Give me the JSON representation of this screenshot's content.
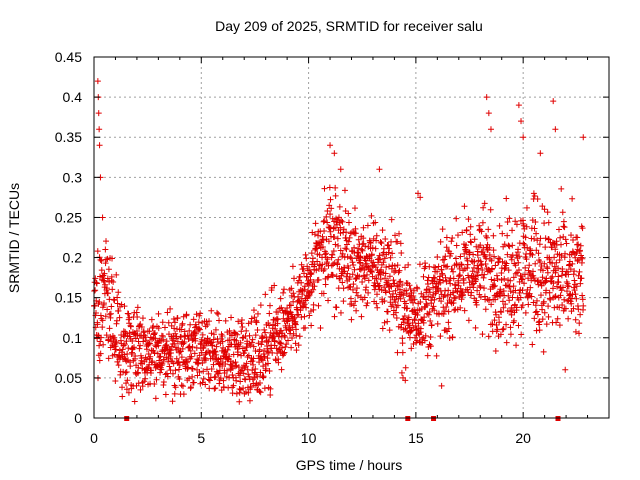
{
  "chart_data": {
    "type": "scatter",
    "title": "Day 209 of 2025, SRMTID for receiver salu",
    "xlabel": "GPS time / hours",
    "ylabel": "SRMTID / TECUs",
    "xlim": [
      0,
      24
    ],
    "ylim": [
      0,
      0.45
    ],
    "x_ticks": [
      0,
      5,
      10,
      15,
      20
    ],
    "x_tick_labels": [
      "0",
      "5",
      "10",
      "15",
      "20"
    ],
    "y_ticks": [
      0,
      0.05,
      0.1,
      0.15,
      0.2,
      0.25,
      0.3,
      0.35,
      0.4,
      0.45
    ],
    "y_tick_labels": [
      "0",
      "0.05",
      "0.1",
      "0.15",
      "0.2",
      "0.25",
      "0.3",
      "0.35",
      "0.4",
      "0.45"
    ],
    "grid": true,
    "marker": "+",
    "color": "#e00000",
    "series": [
      {
        "name": "SRMTID",
        "trend": {
          "x": [
            0.0,
            0.3,
            0.8,
            1.3,
            2.0,
            3.0,
            4.0,
            5.0,
            6.0,
            7.0,
            7.5,
            8.0,
            9.0,
            9.5,
            10.0,
            10.5,
            11.0,
            11.5,
            12.0,
            13.0,
            14.0,
            14.5,
            15.0,
            16.0,
            17.0,
            18.0,
            19.0,
            20.0,
            21.0,
            22.0,
            22.8
          ],
          "center": [
            0.13,
            0.15,
            0.13,
            0.09,
            0.09,
            0.08,
            0.08,
            0.08,
            0.075,
            0.08,
            0.075,
            0.09,
            0.12,
            0.14,
            0.16,
            0.19,
            0.22,
            0.21,
            0.19,
            0.19,
            0.17,
            0.13,
            0.13,
            0.15,
            0.18,
            0.19,
            0.17,
            0.19,
            0.18,
            0.17,
            0.17
          ],
          "spread": [
            0.03,
            0.05,
            0.04,
            0.035,
            0.035,
            0.03,
            0.03,
            0.03,
            0.03,
            0.035,
            0.035,
            0.04,
            0.03,
            0.03,
            0.035,
            0.04,
            0.045,
            0.04,
            0.035,
            0.035,
            0.04,
            0.04,
            0.035,
            0.04,
            0.04,
            0.045,
            0.045,
            0.05,
            0.05,
            0.05,
            0.05
          ]
        },
        "outliers": [
          [
            0.18,
            0.42
          ],
          [
            0.2,
            0.4
          ],
          [
            0.22,
            0.38
          ],
          [
            0.24,
            0.36
          ],
          [
            0.26,
            0.34
          ],
          [
            0.3,
            0.3
          ],
          [
            0.4,
            0.25
          ],
          [
            11.0,
            0.34
          ],
          [
            11.2,
            0.33
          ],
          [
            11.5,
            0.31
          ],
          [
            13.3,
            0.31
          ],
          [
            18.3,
            0.4
          ],
          [
            18.4,
            0.38
          ],
          [
            18.5,
            0.36
          ],
          [
            19.8,
            0.39
          ],
          [
            19.9,
            0.37
          ],
          [
            20.0,
            0.35
          ],
          [
            21.4,
            0.395
          ],
          [
            21.5,
            0.36
          ],
          [
            22.8,
            0.35
          ],
          [
            15.1,
            0.28
          ],
          [
            15.2,
            0.275
          ],
          [
            14.4,
            0.05
          ],
          [
            16.2,
            0.04
          ],
          [
            20.8,
            0.33
          ],
          [
            20.5,
            0.28
          ]
        ],
        "zero_markers": [
          1.5,
          14.6,
          15.8,
          21.6
        ]
      }
    ]
  }
}
